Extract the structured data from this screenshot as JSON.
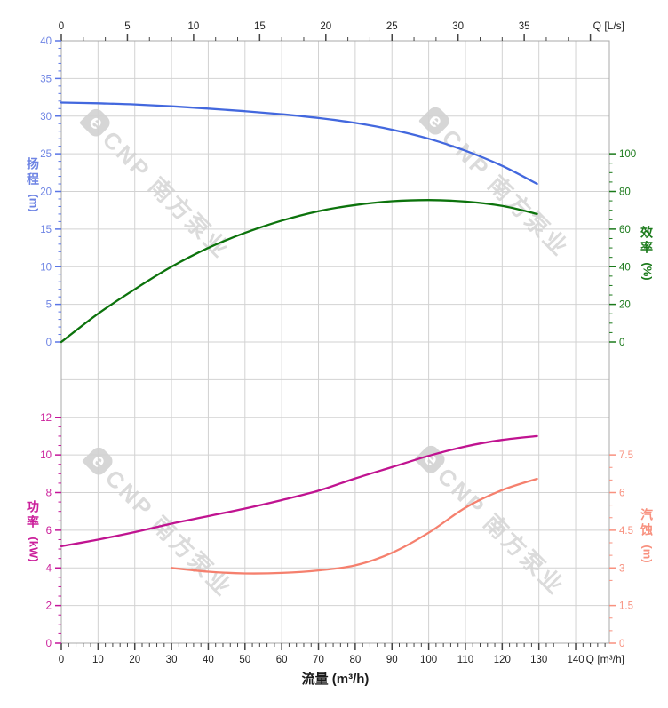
{
  "top_axis": {
    "unit_label": "Q [L/s]",
    "tick_labels": [
      "0",
      "5",
      "10",
      "15",
      "20",
      "25",
      "30",
      "35"
    ],
    "tick_color": "#444444",
    "label_color": "#222222"
  },
  "bottom_axis": {
    "unit_label": "Q [m³/h]",
    "axis_title": "流量 (m³/h)",
    "tick_labels": [
      "0",
      "10",
      "20",
      "30",
      "40",
      "50",
      "60",
      "70",
      "80",
      "90",
      "100",
      "110",
      "120",
      "130",
      "140"
    ],
    "tick_color": "#444444",
    "label_color": "#222222"
  },
  "left_top_axis": {
    "title": "扬程",
    "unit": "(m)",
    "tick_labels": [
      "40",
      "35",
      "30",
      "25",
      "20",
      "15",
      "10",
      "5",
      "0"
    ],
    "tick_color": "#5b76e6",
    "label_color": "#6e84e4"
  },
  "right_top_axis": {
    "title": "效率",
    "unit": "(%)",
    "tick_labels": [
      "100",
      "80",
      "60",
      "40",
      "20",
      "0"
    ],
    "tick_color": "#1b7a1b",
    "label_color": "#1b7a1b"
  },
  "left_bottom_axis": {
    "title": "功率",
    "unit": "(kW)",
    "tick_labels": [
      "12",
      "10",
      "8",
      "6",
      "4",
      "2",
      "0"
    ],
    "tick_color": "#c5169a",
    "label_color": "#cb1f9b"
  },
  "right_bottom_axis": {
    "title": "汽蚀",
    "unit": "(m)",
    "tick_labels": [
      "7.5",
      "6",
      "4.5",
      "3",
      "1.5",
      "0"
    ],
    "tick_color": "#f8917f",
    "label_color": "#f8917f"
  },
  "watermark": {
    "logo_letter": "e",
    "text": "CNP 南方泵业",
    "color": "#d8d8d8",
    "logo_bg": "#d2d2d2"
  },
  "grid": {
    "line_color": "#d2d2d2",
    "border_color": "#a8a8a8",
    "show": true
  },
  "chart_data": {
    "type": "line",
    "title": "",
    "xlabel": "流量 (m³/h)",
    "x_secondary_label": "Q [L/s]",
    "x_range_m3h": [
      0,
      150
    ],
    "x_gridline_step": 10,
    "legend_position": "none",
    "series": [
      {
        "name": "head",
        "label": "扬程",
        "unit": "m",
        "color": "#4368de",
        "axis_range": [
          0,
          40
        ],
        "x": [
          0,
          10,
          20,
          30,
          40,
          50,
          60,
          70,
          80,
          90,
          100,
          110,
          120,
          129.5
        ],
        "y": [
          31.8,
          31.7,
          31.55,
          31.3,
          31.0,
          30.65,
          30.25,
          29.75,
          29.1,
          28.2,
          27.0,
          25.4,
          23.4,
          21.0
        ]
      },
      {
        "name": "efficiency",
        "label": "效率",
        "unit": "%",
        "color": "#0c730c",
        "axis_range": [
          0,
          100
        ],
        "x": [
          0,
          10,
          20,
          30,
          40,
          50,
          60,
          70,
          80,
          90,
          100,
          110,
          120,
          129.5
        ],
        "y": [
          0,
          15,
          28,
          40,
          50,
          58,
          64.5,
          69.5,
          72.8,
          74.8,
          75.4,
          74.6,
          72.3,
          68
        ]
      },
      {
        "name": "power",
        "label": "功率",
        "unit": "kW",
        "color": "#c01390",
        "axis_range": [
          0,
          12
        ],
        "x": [
          0,
          10,
          20,
          30,
          40,
          50,
          60,
          70,
          80,
          90,
          100,
          110,
          120,
          129.5
        ],
        "y": [
          5.15,
          5.5,
          5.9,
          6.35,
          6.75,
          7.15,
          7.6,
          8.1,
          8.75,
          9.35,
          9.95,
          10.45,
          10.8,
          11.0
        ]
      },
      {
        "name": "npsh",
        "label": "汽蚀",
        "unit": "m",
        "color": "#f5806e",
        "axis_range": [
          0,
          7.5
        ],
        "x": [
          30,
          40,
          50,
          60,
          70,
          80,
          90,
          100,
          110,
          120,
          129.5
        ],
        "y": [
          3.0,
          2.85,
          2.78,
          2.8,
          2.9,
          3.1,
          3.6,
          4.4,
          5.4,
          6.1,
          6.55
        ]
      }
    ]
  }
}
